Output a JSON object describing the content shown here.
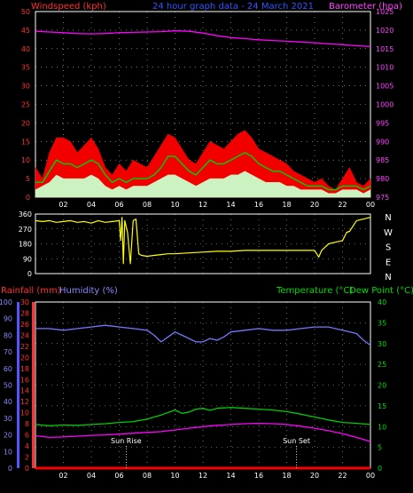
{
  "chart_data": [
    {
      "type": "line",
      "id": "wind-baro",
      "title": "24 hour graph data - 24 March 2021",
      "left_axis_label": "Windspeed (kph)",
      "right_axis_label": "Barometer (hpa)",
      "left_range": [
        0,
        50
      ],
      "left_ticks": [
        "0",
        "5",
        "10",
        "15",
        "20",
        "25",
        "30",
        "35",
        "40",
        "45",
        "50"
      ],
      "right_range": [
        975,
        1025
      ],
      "right_ticks": [
        "975",
        "980",
        "985",
        "990",
        "995",
        "1000",
        "1005",
        "1010",
        "1015",
        "1020",
        "1025"
      ],
      "x_ticks": [
        "02",
        "04",
        "06",
        "08",
        "10",
        "12",
        "14",
        "16",
        "18",
        "20",
        "22",
        "00"
      ],
      "x_range": [
        0,
        24
      ],
      "grid": true,
      "series": [
        {
          "color": "#ff00ff",
          "x": [
            0,
            1,
            2,
            3,
            4,
            5,
            6,
            7,
            8,
            9,
            10,
            11,
            12,
            13,
            14,
            15,
            16,
            17,
            18,
            19,
            20,
            21,
            22,
            23,
            24
          ],
          "y": [
            1019.7,
            1019.5,
            1019.3,
            1019.1,
            1019.0,
            1019.1,
            1019.3,
            1019.4,
            1019.5,
            1019.6,
            1019.8,
            1019.7,
            1019.2,
            1018.5,
            1018.0,
            1017.7,
            1017.4,
            1017.2,
            1017.0,
            1016.8,
            1016.6,
            1016.3,
            1016.1,
            1015.8,
            1015.6
          ]
        },
        {
          "color": "#ff0000",
          "x": [
            0,
            0.5,
            1,
            1.5,
            2,
            2.5,
            3,
            3.5,
            4,
            4.5,
            5,
            5.5,
            6,
            6.5,
            7,
            7.5,
            8,
            8.5,
            9,
            9.5,
            10,
            10.5,
            11,
            11.5,
            12,
            12.5,
            13,
            13.5,
            14,
            14.5,
            15,
            15.5,
            16,
            16.5,
            17,
            17.5,
            18,
            18.5,
            19,
            19.5,
            20,
            20.5,
            21,
            21.5,
            22,
            22.5,
            23,
            23.5,
            24
          ],
          "y": [
            8,
            5,
            12,
            16,
            16,
            15,
            12,
            14,
            16,
            13,
            8,
            6,
            9,
            7,
            10,
            9,
            8,
            11,
            14,
            17,
            16,
            13,
            10,
            9,
            12,
            15,
            14,
            13,
            15,
            17,
            18,
            16,
            13,
            12,
            11,
            10,
            9,
            7,
            6,
            5,
            4,
            5,
            3,
            2,
            5,
            8,
            4,
            3,
            5
          ]
        },
        {
          "color": "#00cc00",
          "x": [
            0,
            0.5,
            1,
            1.5,
            2,
            2.5,
            3,
            3.5,
            4,
            4.5,
            5,
            5.5,
            6,
            6.5,
            7,
            7.5,
            8,
            8.5,
            9,
            9.5,
            10,
            10.5,
            11,
            11.5,
            12,
            12.5,
            13,
            13.5,
            14,
            14.5,
            15,
            15.5,
            16,
            16.5,
            17,
            17.5,
            18,
            18.5,
            19,
            19.5,
            20,
            20.5,
            21,
            21.5,
            22,
            22.5,
            23,
            23.5,
            24
          ],
          "y": [
            4,
            4,
            7,
            10,
            9,
            9,
            8,
            9,
            10,
            9,
            6,
            4,
            5,
            4,
            5,
            5,
            5,
            6,
            8,
            11,
            11,
            9,
            7,
            6,
            8,
            10,
            9,
            9,
            10,
            11,
            12,
            11,
            9,
            8,
            7,
            7,
            6,
            5,
            4,
            3,
            3,
            3,
            2,
            2,
            3,
            3,
            3,
            2,
            3
          ]
        },
        {
          "color": "#ccffcc",
          "x": [
            0,
            0.5,
            1,
            1.5,
            2,
            2.5,
            3,
            3.5,
            4,
            4.5,
            5,
            5.5,
            6,
            6.5,
            7,
            7.5,
            8,
            8.5,
            9,
            9.5,
            10,
            10.5,
            11,
            11.5,
            12,
            12.5,
            13,
            13.5,
            14,
            14.5,
            15,
            15.5,
            16,
            16.5,
            17,
            17.5,
            18,
            18.5,
            19,
            19.5,
            20,
            20.5,
            21,
            21.5,
            22,
            22.5,
            23,
            23.5,
            24
          ],
          "y": [
            2,
            3,
            4,
            6,
            5,
            5,
            5,
            5,
            6,
            5,
            3,
            2,
            3,
            2,
            3,
            3,
            3,
            4,
            5,
            6,
            6,
            5,
            4,
            3,
            4,
            5,
            5,
            5,
            6,
            6,
            7,
            6,
            5,
            4,
            4,
            4,
            3,
            3,
            2,
            2,
            2,
            2,
            1,
            1,
            2,
            2,
            2,
            1,
            2
          ]
        }
      ]
    },
    {
      "type": "line",
      "id": "wind-direction",
      "left_range": [
        0,
        360
      ],
      "left_ticks": [
        "0",
        "90",
        "180",
        "270",
        "360"
      ],
      "right_labels": [
        "N",
        "W",
        "S",
        "E",
        "N"
      ],
      "x_range": [
        0,
        24
      ],
      "grid": true,
      "series": [
        {
          "color": "#ffff00",
          "x": [
            0,
            0.5,
            1,
            1.5,
            2,
            2.5,
            3,
            3.5,
            4,
            4.5,
            5,
            5.5,
            6,
            6.1,
            6.2,
            6.3,
            6.4,
            6.6,
            6.8,
            7,
            7.2,
            7.4,
            7.6,
            8,
            8.5,
            9,
            9.5,
            10,
            11,
            12,
            13,
            14,
            15,
            16,
            17,
            17.5,
            18,
            18.5,
            19,
            19.5,
            20,
            20.3,
            20.5,
            21,
            21.5,
            22,
            22.3,
            22.5,
            23,
            23.5,
            24
          ],
          "y": [
            320,
            315,
            320,
            310,
            315,
            320,
            310,
            315,
            305,
            320,
            310,
            315,
            320,
            200,
            340,
            60,
            320,
            250,
            60,
            320,
            330,
            120,
            110,
            105,
            110,
            115,
            120,
            120,
            125,
            130,
            135,
            135,
            140,
            140,
            140,
            140,
            140,
            140,
            140,
            140,
            140,
            100,
            140,
            180,
            190,
            200,
            250,
            255,
            320,
            330,
            340
          ]
        }
      ]
    },
    {
      "type": "line",
      "id": "rain-hum-temp",
      "rain_label": "Rainfall (mm)",
      "humidity_label": "Humidity (%)",
      "temp_label": "Temperature (°C)",
      "dew_label": "Dew Point (°C)",
      "humidity_range": [
        0,
        100
      ],
      "humidity_ticks": [
        "0",
        "10",
        "20",
        "30",
        "40",
        "50",
        "60",
        "70",
        "80",
        "90",
        "100"
      ],
      "rain_range": [
        0,
        30
      ],
      "rain_ticks": [
        "0",
        "2",
        "4",
        "6",
        "8",
        "10",
        "12",
        "14",
        "16",
        "18",
        "20",
        "22",
        "24",
        "26",
        "28",
        "30"
      ],
      "temp_range": [
        0,
        40
      ],
      "temp_ticks": [
        "0",
        "5",
        "10",
        "15",
        "20",
        "25",
        "30",
        "35",
        "40"
      ],
      "x_ticks": [
        "02",
        "04",
        "06",
        "08",
        "10",
        "12",
        "14",
        "16",
        "18",
        "20",
        "22",
        "00"
      ],
      "x_range": [
        0,
        24
      ],
      "grid": true,
      "annotations": [
        {
          "text": "Sun Rise",
          "x": 6.5
        },
        {
          "text": "Sun Set",
          "x": 18.7
        }
      ],
      "series": [
        {
          "color": "#7777ff",
          "x": [
            0,
            1,
            2,
            3,
            4,
            5,
            6,
            7,
            8,
            8.5,
            9,
            9.5,
            10,
            10.5,
            11,
            11.5,
            12,
            12.5,
            13,
            13.5,
            14,
            15,
            16,
            17,
            18,
            19,
            20,
            21,
            22,
            23,
            23.5,
            24
          ],
          "y": [
            84,
            84,
            83,
            84,
            85,
            86,
            85,
            84,
            83,
            80,
            76,
            79,
            82,
            80,
            78,
            76,
            76,
            78,
            77,
            79,
            82,
            83,
            84,
            83,
            83,
            84,
            85,
            85,
            83,
            81,
            77,
            74
          ]
        },
        {
          "color": "#00cc00",
          "x": [
            0,
            1,
            2,
            3,
            4,
            5,
            6,
            7,
            8,
            9,
            10,
            10.5,
            11,
            11.5,
            12,
            12.5,
            13,
            14,
            15,
            16,
            17,
            18,
            19,
            20,
            21,
            22,
            23,
            24
          ],
          "y": [
            10.5,
            10.2,
            10.4,
            10.3,
            10.5,
            10.7,
            11.0,
            11.2,
            11.8,
            12.8,
            14.0,
            13.2,
            13.5,
            14.2,
            14.4,
            13.9,
            14.4,
            14.6,
            14.4,
            14.2,
            14.0,
            13.6,
            13.0,
            12.3,
            11.6,
            11.0,
            10.8,
            10.5
          ]
        },
        {
          "color": "#ff00ff",
          "x": [
            0,
            1,
            2,
            3,
            4,
            5,
            6,
            7,
            8,
            9,
            10,
            11,
            12,
            13,
            14,
            15,
            16,
            17,
            18,
            19,
            20,
            21,
            22,
            23,
            24
          ],
          "y": [
            7.8,
            7.4,
            7.5,
            7.7,
            7.9,
            8.0,
            8.2,
            8.4,
            8.6,
            8.8,
            9.2,
            9.6,
            10.0,
            10.3,
            10.5,
            10.7,
            10.8,
            10.7,
            10.5,
            10.1,
            9.6,
            9.0,
            8.3,
            7.4,
            6.4
          ]
        },
        {
          "color": "#ff0000",
          "x": [
            0,
            24
          ],
          "y": [
            0,
            0
          ]
        }
      ]
    }
  ]
}
